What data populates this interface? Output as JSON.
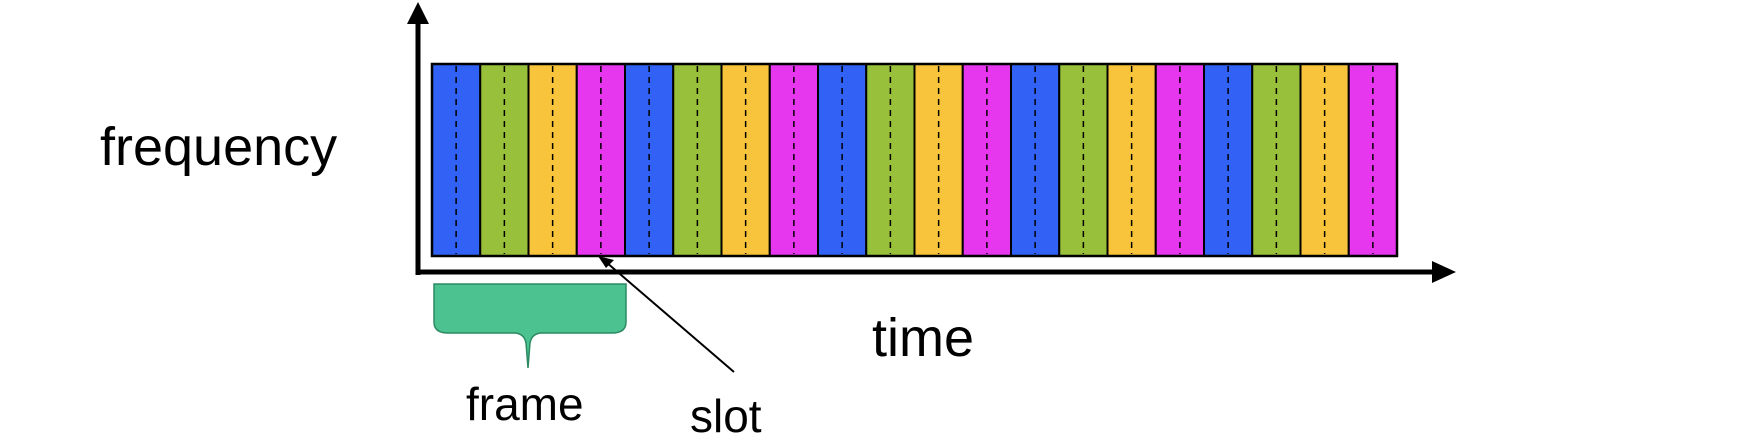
{
  "labels": {
    "y_axis": "frequency",
    "x_axis": "time",
    "frame": "frame",
    "slot": "slot"
  },
  "slots": {
    "count": 20,
    "colors": [
      "#3162f5",
      "#99c03a",
      "#f8c43b",
      "#e637ee"
    ]
  },
  "colors": {
    "frame_brace": "#4cc291",
    "axis": "#000000"
  }
}
